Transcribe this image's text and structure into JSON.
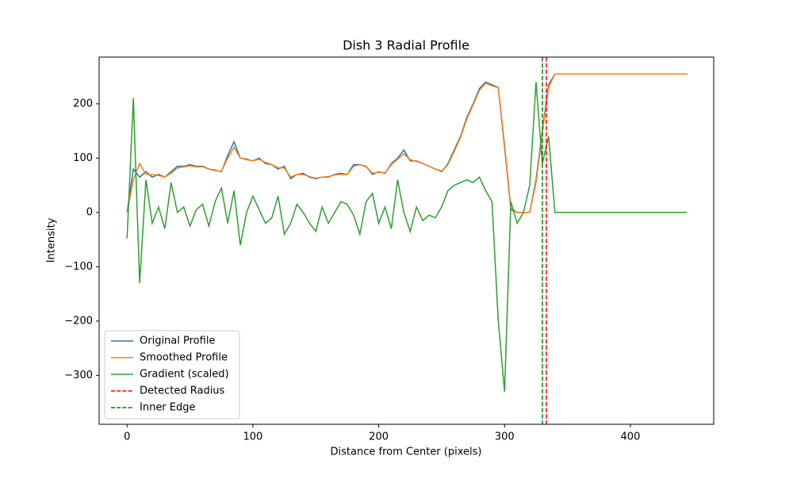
{
  "chart_data": {
    "type": "line",
    "title": "Dish 3 Radial Profile",
    "xlabel": "Distance from Center (pixels)",
    "ylabel": "Intensity",
    "x": [
      0,
      5,
      10,
      15,
      20,
      25,
      30,
      35,
      40,
      45,
      50,
      55,
      60,
      65,
      70,
      75,
      80,
      85,
      90,
      95,
      100,
      105,
      110,
      115,
      120,
      125,
      130,
      135,
      140,
      145,
      150,
      155,
      160,
      165,
      170,
      175,
      180,
      185,
      190,
      195,
      200,
      205,
      210,
      215,
      220,
      225,
      230,
      235,
      240,
      245,
      250,
      255,
      260,
      265,
      270,
      275,
      280,
      285,
      290,
      295,
      300,
      305,
      310,
      315,
      320,
      325,
      330,
      335,
      340,
      345,
      350,
      355,
      360,
      365,
      370,
      375,
      380,
      385,
      390,
      395,
      400,
      405,
      410,
      415,
      420,
      425,
      430,
      435,
      440,
      445
    ],
    "series": [
      {
        "name": "Original Profile",
        "color": "#1f77b4",
        "values": [
          0,
          80,
          65,
          75,
          65,
          70,
          65,
          75,
          85,
          85,
          88,
          85,
          85,
          80,
          78,
          75,
          105,
          130,
          100,
          98,
          95,
          100,
          90,
          88,
          80,
          85,
          62,
          70,
          72,
          65,
          62,
          65,
          65,
          70,
          72,
          70,
          88,
          88,
          85,
          70,
          75,
          72,
          90,
          100,
          115,
          95,
          95,
          90,
          85,
          80,
          75,
          90,
          115,
          140,
          175,
          200,
          228,
          240,
          235,
          230,
          120,
          5,
          0,
          0,
          0,
          60,
          150,
          235,
          255,
          255,
          255,
          255,
          255,
          255,
          255,
          255,
          255,
          255,
          255,
          255,
          255,
          255,
          255,
          255,
          255,
          255,
          255,
          255,
          255,
          255
        ]
      },
      {
        "name": "Smoothed Profile",
        "color": "#ff7f0e",
        "values": [
          0,
          60,
          90,
          70,
          70,
          68,
          65,
          72,
          82,
          84,
          86,
          84,
          84,
          80,
          77,
          76,
          100,
          120,
          100,
          97,
          95,
          98,
          92,
          88,
          82,
          82,
          65,
          70,
          70,
          66,
          63,
          65,
          66,
          69,
          70,
          70,
          85,
          88,
          84,
          72,
          74,
          73,
          88,
          98,
          108,
          97,
          94,
          90,
          85,
          80,
          76,
          88,
          112,
          138,
          172,
          198,
          225,
          238,
          233,
          230,
          125,
          8,
          0,
          0,
          0,
          55,
          145,
          230,
          255,
          255,
          255,
          255,
          255,
          255,
          255,
          255,
          255,
          255,
          255,
          255,
          255,
          255,
          255,
          255,
          255,
          255,
          255,
          255,
          255,
          255
        ]
      },
      {
        "name": "Gradient (scaled)",
        "color": "#2ca02c",
        "values": [
          -48,
          210,
          -130,
          60,
          -20,
          10,
          -30,
          55,
          0,
          10,
          -25,
          5,
          15,
          -25,
          20,
          45,
          -20,
          40,
          -60,
          0,
          30,
          5,
          -20,
          -10,
          30,
          -40,
          -20,
          15,
          0,
          -20,
          -35,
          10,
          -20,
          0,
          20,
          15,
          -5,
          -40,
          20,
          35,
          -20,
          10,
          -30,
          60,
          0,
          -35,
          10,
          -15,
          -5,
          -10,
          10,
          40,
          50,
          55,
          60,
          55,
          65,
          40,
          20,
          -200,
          -330,
          20,
          -20,
          0,
          50,
          240,
          90,
          140,
          0,
          0,
          0,
          0,
          0,
          0,
          0,
          0,
          0,
          0,
          0,
          0,
          0,
          0,
          0,
          0,
          0,
          0,
          0,
          0,
          0,
          0
        ]
      }
    ],
    "vlines": [
      {
        "name": "Detected Radius",
        "x": 333.2,
        "color": "#ff0000"
      },
      {
        "name": "Inner Edge",
        "x": 330.1,
        "color": "#008000"
      }
    ],
    "xlim": [
      -22.2,
      466.2
    ],
    "ylim": [
      -390,
      286
    ],
    "xticks": [
      0,
      100,
      200,
      300,
      400
    ],
    "yticks": [
      {
        "value": -300,
        "label": "−300"
      },
      {
        "value": -200,
        "label": "−200"
      },
      {
        "value": -100,
        "label": "−100"
      },
      0,
      100,
      200
    ],
    "grid": false,
    "legend": "lower left"
  }
}
